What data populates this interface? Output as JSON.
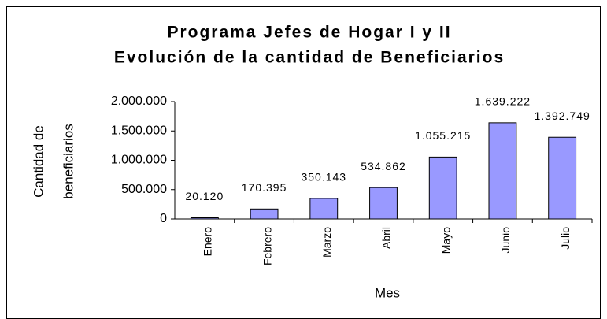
{
  "chart_data": {
    "type": "bar",
    "title": "Programa Jefes de Hogar I y II",
    "subtitle": "Evolución de la cantidad de Beneficiarios",
    "y_label": [
      "Cantidad de",
      "beneficiarios"
    ],
    "x_label": "Mes",
    "categories": [
      "Enero",
      "Febrero",
      "Marzo",
      "Abril",
      "Mayo",
      "Junio",
      "Julio"
    ],
    "values": [
      20120,
      170395,
      350143,
      534862,
      1055215,
      1639222,
      1392749
    ],
    "value_labels": [
      "20.120",
      "170.395",
      "350.143",
      "534.862",
      "1.055.215",
      "1.639.222",
      "1.392.749"
    ],
    "color": "#9999ff",
    "ylim": [
      0,
      2000000
    ],
    "yticks": [
      0,
      {
        "value": 500000,
        "label": "500.000"
      },
      {
        "value": 1000000,
        "label": "1.000.000"
      },
      {
        "value": 1500000,
        "label": "1.500.000"
      },
      {
        "value": 2000000,
        "label": "2.000.000"
      }
    ],
    "grid": false
  }
}
